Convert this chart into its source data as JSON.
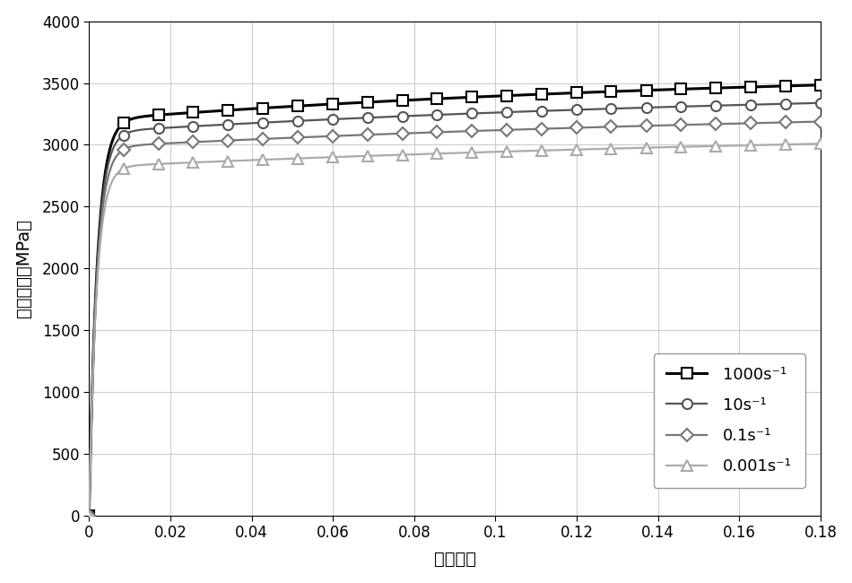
{
  "xlabel": "真实应变",
  "ylabel": "真实应力（MPa）",
  "xlim": [
    0,
    0.18
  ],
  "ylim": [
    0,
    4000
  ],
  "xticks": [
    0,
    0.02,
    0.04,
    0.06,
    0.08,
    0.1,
    0.12,
    0.14,
    0.16,
    0.18
  ],
  "yticks": [
    0,
    500,
    1000,
    1500,
    2000,
    2500,
    3000,
    3500,
    4000
  ],
  "curve_params": [
    {
      "s1": 3200,
      "k1": 500,
      "s2": 430,
      "k2": 6.0,
      "color": "#000000",
      "lw": 2.2,
      "marker": "s",
      "ms": 8,
      "label": "1000s⁻¹"
    },
    {
      "s1": 3100,
      "k1": 520,
      "s2": 380,
      "k2": 5.5,
      "color": "#555555",
      "lw": 1.6,
      "marker": "o",
      "ms": 8,
      "label": "10s⁻¹"
    },
    {
      "s1": 2980,
      "k1": 530,
      "s2": 350,
      "k2": 5.0,
      "color": "#777777",
      "lw": 1.6,
      "marker": "D",
      "ms": 7,
      "label": "0.1s⁻¹"
    },
    {
      "s1": 2820,
      "k1": 550,
      "s2": 340,
      "k2": 4.5,
      "color": "#aaaaaa",
      "lw": 1.6,
      "marker": "^",
      "ms": 8,
      "label": "0.001s⁻¹"
    }
  ],
  "n_points": 1000,
  "n_markers": 22,
  "background_color": "#ffffff",
  "grid_color": "#cccccc",
  "grid_lw": 0.8,
  "figsize": [
    9.5,
    6.5
  ],
  "dpi": 100,
  "legend_fontsize": 13,
  "tick_fontsize": 12,
  "label_fontsize": 14
}
